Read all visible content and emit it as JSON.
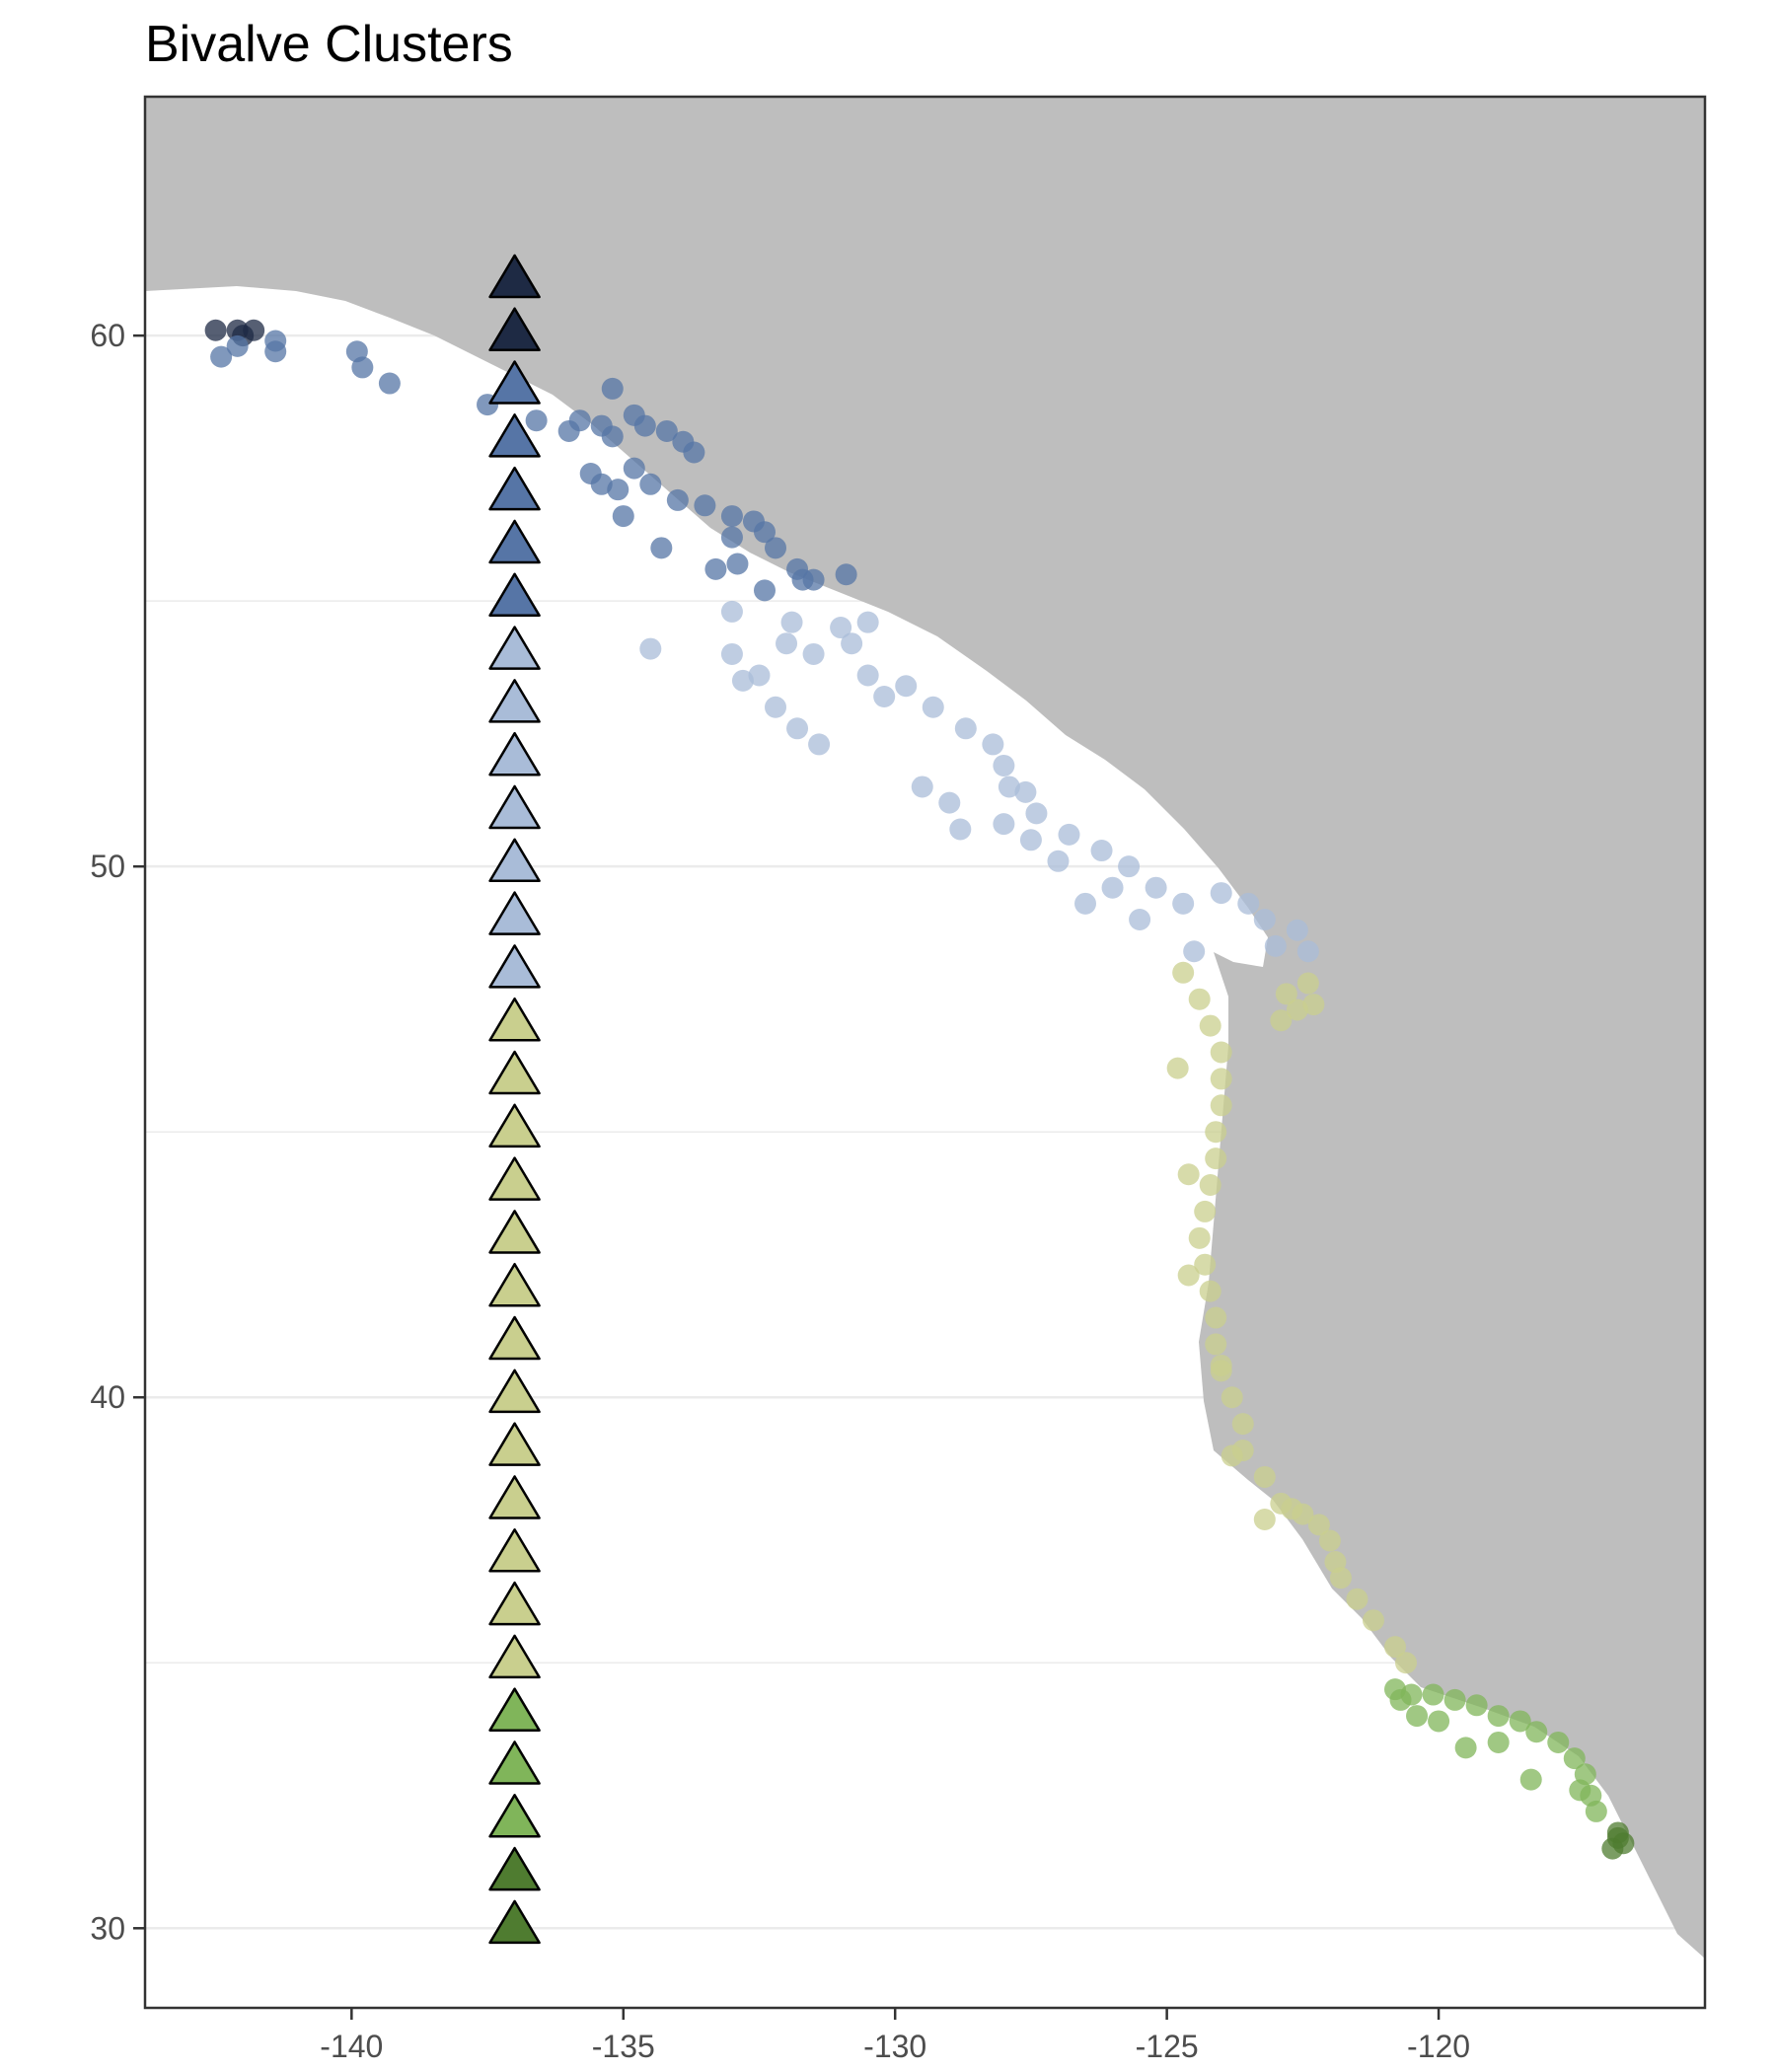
{
  "chart_data": {
    "type": "scatter",
    "title": "Bivalve Clusters",
    "xlabel": "",
    "ylabel": "",
    "xlim": [
      -143.8,
      -115.1
    ],
    "ylim": [
      28.5,
      64.5
    ],
    "x_ticks": [
      -140,
      -135,
      -130,
      -125,
      -120
    ],
    "y_ticks": [
      30,
      40,
      50,
      60
    ],
    "x_tick_labels": [
      "-140",
      "-135",
      "-130",
      "-125",
      "-120"
    ],
    "y_tick_labels": [
      "30",
      "40",
      "50",
      "60"
    ],
    "grid": true,
    "legend": "none",
    "colors": {
      "land": "#bebebe",
      "panel_border": "#333333",
      "gridline": "#ebebeb",
      "cluster_1": "#1e2a44",
      "cluster_2": "#5675a6",
      "cluster_3": "#a9bcd8",
      "cluster_4": "#c9cf8e",
      "cluster_5": "#80b55a",
      "cluster_6": "#4f7c30"
    },
    "triangle_longitude": -137,
    "triangles": [
      {
        "lat": 61.1,
        "cluster": 1
      },
      {
        "lat": 60.1,
        "cluster": 1
      },
      {
        "lat": 59.1,
        "cluster": 2
      },
      {
        "lat": 58.1,
        "cluster": 2
      },
      {
        "lat": 57.1,
        "cluster": 2
      },
      {
        "lat": 56.1,
        "cluster": 2
      },
      {
        "lat": 55.1,
        "cluster": 2
      },
      {
        "lat": 54.1,
        "cluster": 3
      },
      {
        "lat": 53.1,
        "cluster": 3
      },
      {
        "lat": 52.1,
        "cluster": 3
      },
      {
        "lat": 51.1,
        "cluster": 3
      },
      {
        "lat": 50.1,
        "cluster": 3
      },
      {
        "lat": 49.1,
        "cluster": 3
      },
      {
        "lat": 48.1,
        "cluster": 3
      },
      {
        "lat": 47.1,
        "cluster": 4
      },
      {
        "lat": 46.1,
        "cluster": 4
      },
      {
        "lat": 45.1,
        "cluster": 4
      },
      {
        "lat": 44.1,
        "cluster": 4
      },
      {
        "lat": 43.1,
        "cluster": 4
      },
      {
        "lat": 42.1,
        "cluster": 4
      },
      {
        "lat": 41.1,
        "cluster": 4
      },
      {
        "lat": 40.1,
        "cluster": 4
      },
      {
        "lat": 39.1,
        "cluster": 4
      },
      {
        "lat": 38.1,
        "cluster": 4
      },
      {
        "lat": 37.1,
        "cluster": 4
      },
      {
        "lat": 36.1,
        "cluster": 4
      },
      {
        "lat": 35.1,
        "cluster": 4
      },
      {
        "lat": 34.1,
        "cluster": 5
      },
      {
        "lat": 33.1,
        "cluster": 5
      },
      {
        "lat": 32.1,
        "cluster": 5
      },
      {
        "lat": 31.1,
        "cluster": 6
      },
      {
        "lat": 30.1,
        "cluster": 6
      }
    ],
    "clusters": [
      {
        "cluster": 1,
        "points": [
          [
            -142.5,
            60.1
          ],
          [
            -142.1,
            60.1
          ],
          [
            -141.8,
            60.1
          ],
          [
            -142.0,
            60.0
          ]
        ]
      },
      {
        "cluster": 2,
        "points": [
          [
            -142.4,
            59.6
          ],
          [
            -142.1,
            59.8
          ],
          [
            -141.4,
            59.9
          ],
          [
            -141.4,
            59.7
          ],
          [
            -139.9,
            59.7
          ],
          [
            -139.8,
            59.4
          ],
          [
            -139.3,
            59.1
          ],
          [
            -137.5,
            58.7
          ],
          [
            -136.6,
            58.4
          ],
          [
            -136.0,
            58.2
          ],
          [
            -135.8,
            58.4
          ],
          [
            -135.4,
            58.3
          ],
          [
            -135.2,
            58.1
          ],
          [
            -134.8,
            58.5
          ],
          [
            -134.6,
            58.3
          ],
          [
            -134.2,
            58.2
          ],
          [
            -133.9,
            58.0
          ],
          [
            -133.7,
            57.8
          ],
          [
            -135.6,
            57.4
          ],
          [
            -135.4,
            57.2
          ],
          [
            -135.1,
            57.1
          ],
          [
            -134.8,
            57.5
          ],
          [
            -134.5,
            57.2
          ],
          [
            -134.0,
            56.9
          ],
          [
            -133.5,
            56.8
          ],
          [
            -133.0,
            56.2
          ],
          [
            -132.6,
            56.5
          ],
          [
            -132.2,
            56.0
          ],
          [
            -131.8,
            55.6
          ],
          [
            -131.5,
            55.4
          ],
          [
            -130.9,
            55.5
          ],
          [
            -133.3,
            55.6
          ],
          [
            -132.9,
            55.7
          ],
          [
            -132.4,
            55.2
          ],
          [
            -135.0,
            56.6
          ],
          [
            -134.3,
            56.0
          ],
          [
            -133.0,
            56.6
          ],
          [
            -132.4,
            56.3
          ],
          [
            -131.7,
            55.4
          ],
          [
            -135.2,
            59.0
          ]
        ]
      },
      {
        "cluster": 3,
        "points": [
          [
            -134.5,
            54.1
          ],
          [
            -133.0,
            54.0
          ],
          [
            -132.5,
            53.6
          ],
          [
            -132.2,
            53.0
          ],
          [
            -131.8,
            52.6
          ],
          [
            -131.4,
            52.3
          ],
          [
            -132.8,
            53.5
          ],
          [
            -132.0,
            54.2
          ],
          [
            -131.5,
            54.0
          ],
          [
            -131.0,
            54.5
          ],
          [
            -130.8,
            54.2
          ],
          [
            -130.5,
            53.6
          ],
          [
            -130.2,
            53.2
          ],
          [
            -129.8,
            53.4
          ],
          [
            -129.3,
            53.0
          ],
          [
            -128.7,
            52.6
          ],
          [
            -128.2,
            52.3
          ],
          [
            -128.0,
            51.9
          ],
          [
            -127.6,
            51.4
          ],
          [
            -127.4,
            51.0
          ],
          [
            -126.8,
            50.6
          ],
          [
            -126.2,
            50.3
          ],
          [
            -125.7,
            50.0
          ],
          [
            -125.2,
            49.6
          ],
          [
            -124.7,
            49.3
          ],
          [
            -124.0,
            49.5
          ],
          [
            -123.5,
            49.3
          ],
          [
            -123.2,
            49.0
          ],
          [
            -123.0,
            48.5
          ],
          [
            -122.6,
            48.8
          ],
          [
            -122.4,
            48.4
          ],
          [
            -124.5,
            48.4
          ],
          [
            -125.5,
            49.0
          ],
          [
            -126.5,
            49.3
          ],
          [
            -127.0,
            50.1
          ],
          [
            -128.0,
            50.8
          ],
          [
            -129.0,
            51.2
          ],
          [
            -129.5,
            51.5
          ],
          [
            -128.8,
            50.7
          ],
          [
            -127.5,
            50.5
          ],
          [
            -126.0,
            49.6
          ],
          [
            -131.9,
            54.6
          ],
          [
            -130.5,
            54.6
          ],
          [
            -133.0,
            54.8
          ],
          [
            -127.9,
            51.5
          ]
        ]
      },
      {
        "cluster": 4,
        "points": [
          [
            -124.7,
            48.0
          ],
          [
            -124.4,
            47.5
          ],
          [
            -124.2,
            47.0
          ],
          [
            -124.0,
            46.5
          ],
          [
            -124.0,
            46.0
          ],
          [
            -124.0,
            45.5
          ],
          [
            -124.1,
            45.0
          ],
          [
            -124.1,
            44.5
          ],
          [
            -124.2,
            44.0
          ],
          [
            -124.3,
            43.5
          ],
          [
            -124.4,
            43.0
          ],
          [
            -124.3,
            42.5
          ],
          [
            -124.2,
            42.0
          ],
          [
            -124.1,
            41.5
          ],
          [
            -124.1,
            41.0
          ],
          [
            -124.0,
            40.5
          ],
          [
            -123.8,
            40.0
          ],
          [
            -123.6,
            39.5
          ],
          [
            -123.6,
            39.0
          ],
          [
            -123.2,
            38.5
          ],
          [
            -122.9,
            38.0
          ],
          [
            -122.5,
            37.8
          ],
          [
            -122.2,
            37.6
          ],
          [
            -122.0,
            37.3
          ],
          [
            -121.9,
            36.9
          ],
          [
            -121.8,
            36.6
          ],
          [
            -121.5,
            36.2
          ],
          [
            -121.2,
            35.8
          ],
          [
            -120.8,
            35.3
          ],
          [
            -120.6,
            35.0
          ],
          [
            -122.8,
            47.6
          ],
          [
            -122.6,
            47.3
          ],
          [
            -122.4,
            47.8
          ],
          [
            -122.9,
            47.1
          ],
          [
            -122.3,
            47.4
          ],
          [
            -124.8,
            46.2
          ],
          [
            -124.6,
            44.2
          ],
          [
            -124.6,
            42.3
          ],
          [
            -124.0,
            40.6
          ],
          [
            -123.8,
            38.9
          ],
          [
            -123.2,
            37.7
          ],
          [
            -122.7,
            37.9
          ]
        ]
      },
      {
        "cluster": 5,
        "points": [
          [
            -120.8,
            34.5
          ],
          [
            -120.5,
            34.4
          ],
          [
            -120.1,
            34.4
          ],
          [
            -119.7,
            34.3
          ],
          [
            -119.3,
            34.2
          ],
          [
            -118.9,
            34.0
          ],
          [
            -118.5,
            33.9
          ],
          [
            -118.2,
            33.7
          ],
          [
            -117.8,
            33.5
          ],
          [
            -117.5,
            33.2
          ],
          [
            -117.3,
            32.9
          ],
          [
            -117.2,
            32.5
          ],
          [
            -117.1,
            32.2
          ],
          [
            -120.4,
            34.0
          ],
          [
            -120.0,
            33.9
          ],
          [
            -119.5,
            33.4
          ],
          [
            -118.9,
            33.5
          ],
          [
            -118.3,
            32.8
          ],
          [
            -117.4,
            32.6
          ],
          [
            -120.7,
            34.3
          ]
        ]
      },
      {
        "cluster": 6,
        "points": [
          [
            -116.7,
            31.8
          ],
          [
            -116.6,
            31.6
          ],
          [
            -116.8,
            31.5
          ],
          [
            -116.7,
            31.7
          ]
        ]
      }
    ]
  }
}
